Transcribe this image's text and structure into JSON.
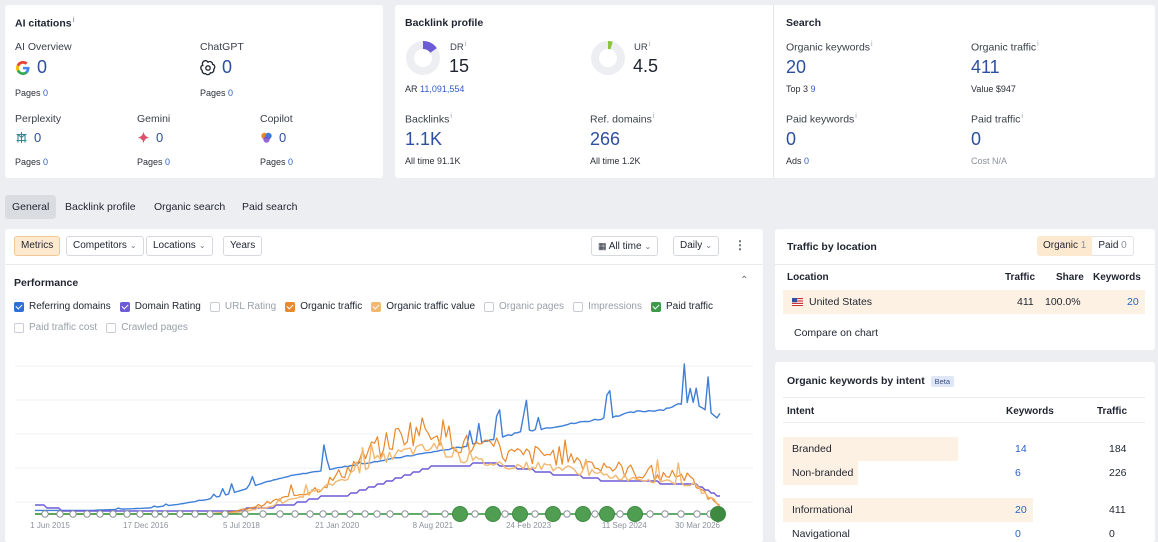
{
  "ai_citations": {
    "title": "AI citations",
    "info": "i",
    "overview": {
      "label": "AI Overview",
      "value": "0",
      "pages_label": "Pages",
      "pages_value": "0"
    },
    "chatgpt": {
      "label": "ChatGPT",
      "value": "0",
      "pages_label": "Pages",
      "pages_value": "0"
    },
    "perplexity": {
      "label": "Perplexity",
      "value": "0",
      "pages_label": "Pages",
      "pages_value": "0"
    },
    "gemini": {
      "label": "Gemini",
      "value": "0",
      "pages_label": "Pages",
      "pages_value": "0"
    },
    "copilot": {
      "label": "Copilot",
      "value": "0",
      "pages_label": "Pages",
      "pages_value": "0"
    }
  },
  "backlink_profile": {
    "title": "Backlink profile",
    "dr": {
      "label": "DR",
      "value": "15",
      "gauge": 0.15,
      "color": "#6b5bd6"
    },
    "ur": {
      "label": "UR",
      "value": "4.5",
      "gauge": 0.045,
      "color": "#8ac43f"
    },
    "ar": {
      "label": "AR",
      "value": "11,091,554"
    },
    "backlinks": {
      "label": "Backlinks",
      "value": "1.1K",
      "sub_label": "All time",
      "sub_value": "91.1K"
    },
    "ref_domains": {
      "label": "Ref. domains",
      "value": "266",
      "sub_label": "All time",
      "sub_value": "1.2K"
    }
  },
  "search": {
    "title": "Search",
    "organic_keywords": {
      "label": "Organic keywords",
      "value": "20",
      "sub_label": "Top 3",
      "sub_value": "9"
    },
    "organic_traffic": {
      "label": "Organic traffic",
      "value": "411",
      "sub_label": "Value",
      "sub_value": "$947"
    },
    "paid_keywords": {
      "label": "Paid keywords",
      "value": "0",
      "sub_label": "Ads",
      "sub_value": "0"
    },
    "paid_traffic": {
      "label": "Paid traffic",
      "value": "0",
      "sub_label": "Cost",
      "sub_value": "N/A"
    }
  },
  "tabs": [
    "General",
    "Backlink profile",
    "Organic search",
    "Paid search"
  ],
  "toolbar": {
    "metrics": "Metrics",
    "competitors": "Competitors",
    "locations": "Locations",
    "years": "Years",
    "all_time": "All time",
    "daily": "Daily"
  },
  "performance": {
    "title": "Performance",
    "checkboxes": [
      {
        "label": "Referring domains",
        "checked": true,
        "color": "#2f6fd6"
      },
      {
        "label": "Domain Rating",
        "checked": true,
        "color": "#6b5bd6"
      },
      {
        "label": "URL Rating",
        "checked": false,
        "color": ""
      },
      {
        "label": "Organic traffic",
        "checked": true,
        "color": "#e8892b"
      },
      {
        "label": "Organic traffic value",
        "checked": true,
        "color": "#f2b872"
      },
      {
        "label": "Organic pages",
        "checked": false,
        "color": ""
      },
      {
        "label": "Impressions",
        "checked": false,
        "color": ""
      },
      {
        "label": "Paid traffic",
        "checked": true,
        "color": "#3e9a4a"
      },
      {
        "label": "Paid traffic cost",
        "checked": false,
        "color": ""
      },
      {
        "label": "Crawled pages",
        "checked": false,
        "color": ""
      }
    ]
  },
  "chart_data": {
    "type": "line",
    "x_tick_labels": [
      "1 Jun 2015",
      "17 Dec 2016",
      "5 Jul 2018",
      "21 Jan 2020",
      "8 Aug 2021",
      "24 Feb 2023",
      "11 Sep 2024",
      "30 Mar 2026"
    ],
    "series": [
      {
        "name": "Referring domains",
        "color": "#3f7fd8",
        "values": [
          0.03,
          0.03,
          0.03,
          0.04,
          0.05,
          0.08,
          0.12,
          0.18,
          0.26,
          0.32,
          0.36,
          0.4,
          0.44,
          0.48,
          0.52,
          0.56,
          0.62,
          0.68,
          0.72,
          0.76,
          0.8,
          0.85,
          0.87,
          0.95,
          0.78
        ]
      },
      {
        "name": "Domain Rating",
        "color": "#6b5bd6",
        "values": [
          0.08,
          0.03,
          0.02,
          0.02,
          0.03,
          0.03,
          0.02,
          0.03,
          0.05,
          0.08,
          0.14,
          0.16,
          0.24,
          0.32,
          0.4,
          0.41,
          0.42,
          0.38,
          0.34,
          0.32,
          0.28,
          0.28,
          0.26,
          0.26,
          0.15
        ]
      },
      {
        "name": "Organic traffic",
        "color": "#e8892b",
        "values": [
          0,
          0,
          0,
          0,
          0,
          0,
          0,
          0.02,
          0.08,
          0.15,
          0.22,
          0.38,
          0.55,
          0.68,
          0.72,
          0.58,
          0.52,
          0.48,
          0.5,
          0.45,
          0.4,
          0.35,
          0.3,
          0.28,
          0.05
        ]
      },
      {
        "name": "Organic traffic value",
        "color": "#f2b872",
        "values": [
          0,
          0,
          0,
          0,
          0,
          0,
          0,
          0.01,
          0.05,
          0.12,
          0.2,
          0.32,
          0.45,
          0.52,
          0.55,
          0.46,
          0.42,
          0.4,
          0.4,
          0.36,
          0.32,
          0.3,
          0.28,
          0.25,
          0.08
        ]
      },
      {
        "name": "Paid traffic",
        "color": "#3e9a4a",
        "values": [
          0,
          0,
          0,
          0,
          0,
          0,
          0,
          0,
          0,
          0,
          0,
          0,
          0,
          0,
          0,
          0,
          0,
          0,
          0,
          0,
          0,
          0,
          0,
          0,
          0
        ]
      }
    ]
  },
  "traffic_by_location": {
    "title": "Traffic by location",
    "toggle": [
      {
        "label": "Organic",
        "count": "1",
        "active": true
      },
      {
        "label": "Paid",
        "count": "0",
        "active": false
      }
    ],
    "headers": [
      "Location",
      "Traffic",
      "Share",
      "Keywords"
    ],
    "rows": [
      {
        "location": "United States",
        "traffic": "411",
        "share": "100.0%",
        "keywords": "20"
      }
    ],
    "compare": "Compare on chart"
  },
  "keywords_by_intent": {
    "title": "Organic keywords by intent",
    "badge": "Beta",
    "headers": [
      "Intent",
      "Keywords",
      "Traffic"
    ],
    "rows": [
      {
        "intent": "Branded",
        "keywords": "14",
        "traffic": "184",
        "share": 0.7
      },
      {
        "intent": "Non-branded",
        "keywords": "6",
        "traffic": "226",
        "share": 0.3
      },
      {
        "intent": "Informational",
        "keywords": "20",
        "traffic": "411",
        "share": 1.0
      },
      {
        "intent": "Navigational",
        "keywords": "0",
        "traffic": "0",
        "share": 0
      }
    ]
  }
}
